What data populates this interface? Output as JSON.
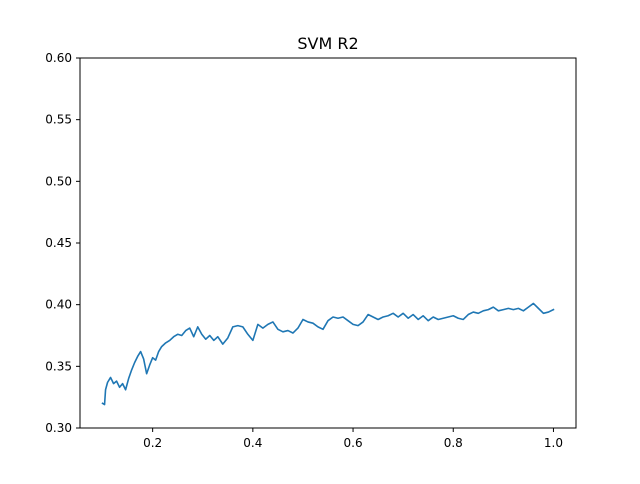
{
  "chart_data": {
    "type": "line",
    "title": "SVM R2",
    "xlabel": "",
    "ylabel": "",
    "xlim": [
      0.055,
      1.045
    ],
    "ylim": [
      0.3,
      0.6
    ],
    "x_ticks": [
      0.2,
      0.4,
      0.6,
      0.8,
      1.0
    ],
    "x_tick_labels": [
      "0.2",
      "0.4",
      "0.6",
      "0.8",
      "1.0"
    ],
    "y_ticks": [
      0.3,
      0.35,
      0.4,
      0.45,
      0.5,
      0.55,
      0.6
    ],
    "y_tick_labels": [
      "0.30",
      "0.35",
      "0.40",
      "0.45",
      "0.50",
      "0.55",
      "0.60"
    ],
    "grid": false,
    "series": [
      {
        "color": "#1f77b4",
        "x": [
          0.1,
          0.104,
          0.106,
          0.11,
          0.116,
          0.122,
          0.128,
          0.134,
          0.14,
          0.146,
          0.152,
          0.158,
          0.164,
          0.17,
          0.176,
          0.182,
          0.188,
          0.194,
          0.2,
          0.206,
          0.212,
          0.218,
          0.226,
          0.234,
          0.242,
          0.25,
          0.258,
          0.266,
          0.274,
          0.282,
          0.29,
          0.298,
          0.306,
          0.314,
          0.322,
          0.33,
          0.34,
          0.35,
          0.36,
          0.37,
          0.38,
          0.39,
          0.4,
          0.41,
          0.42,
          0.43,
          0.44,
          0.45,
          0.46,
          0.47,
          0.48,
          0.49,
          0.5,
          0.51,
          0.52,
          0.53,
          0.54,
          0.55,
          0.56,
          0.57,
          0.58,
          0.59,
          0.6,
          0.61,
          0.62,
          0.63,
          0.64,
          0.65,
          0.66,
          0.67,
          0.68,
          0.69,
          0.7,
          0.71,
          0.72,
          0.73,
          0.74,
          0.75,
          0.76,
          0.77,
          0.78,
          0.79,
          0.8,
          0.81,
          0.82,
          0.83,
          0.84,
          0.85,
          0.86,
          0.87,
          0.88,
          0.89,
          0.9,
          0.91,
          0.92,
          0.93,
          0.94,
          0.95,
          0.96,
          0.97,
          0.98,
          0.99,
          1.0
        ],
        "y": [
          0.32,
          0.319,
          0.331,
          0.337,
          0.341,
          0.336,
          0.338,
          0.333,
          0.336,
          0.331,
          0.34,
          0.347,
          0.353,
          0.358,
          0.362,
          0.356,
          0.344,
          0.351,
          0.357,
          0.355,
          0.362,
          0.366,
          0.369,
          0.371,
          0.374,
          0.376,
          0.375,
          0.379,
          0.381,
          0.374,
          0.382,
          0.376,
          0.372,
          0.375,
          0.371,
          0.374,
          0.368,
          0.373,
          0.382,
          0.383,
          0.382,
          0.376,
          0.371,
          0.384,
          0.381,
          0.384,
          0.386,
          0.38,
          0.378,
          0.379,
          0.377,
          0.381,
          0.388,
          0.386,
          0.385,
          0.382,
          0.38,
          0.387,
          0.39,
          0.389,
          0.39,
          0.387,
          0.384,
          0.383,
          0.386,
          0.392,
          0.39,
          0.388,
          0.39,
          0.391,
          0.393,
          0.39,
          0.393,
          0.389,
          0.392,
          0.388,
          0.391,
          0.387,
          0.39,
          0.388,
          0.389,
          0.39,
          0.391,
          0.389,
          0.388,
          0.392,
          0.394,
          0.393,
          0.395,
          0.396,
          0.398,
          0.395,
          0.396,
          0.397,
          0.396,
          0.397,
          0.395,
          0.398,
          0.401,
          0.397,
          0.393,
          0.394,
          0.396
        ]
      }
    ]
  }
}
